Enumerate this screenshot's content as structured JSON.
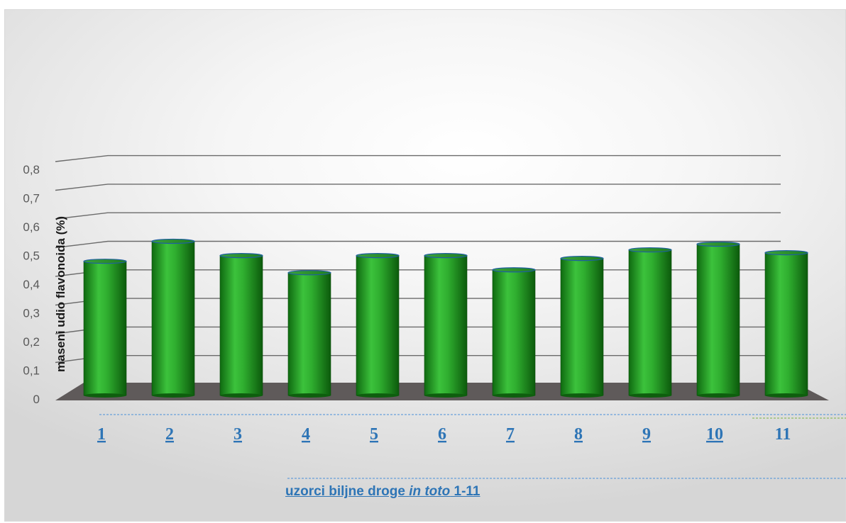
{
  "chart_data": {
    "type": "bar",
    "style": "3d-cylinder",
    "categories": [
      "1",
      "2",
      "3",
      "4",
      "5",
      "6",
      "7",
      "8",
      "9",
      "10",
      "11"
    ],
    "values": [
      0.44,
      0.51,
      0.46,
      0.4,
      0.46,
      0.46,
      0.41,
      0.45,
      0.48,
      0.5,
      0.47
    ],
    "y_ticks": [
      "0",
      "0,1",
      "0,2",
      "0,3",
      "0,4",
      "0,5",
      "0,6",
      "0,7",
      "0,8"
    ],
    "ylim": [
      0,
      0.8
    ],
    "ylabel": "maseni udio flavonoida (%)",
    "xlabel_parts": {
      "before": "uzorci biljne droge ",
      "italic": "in toto",
      "after": " 1-11"
    },
    "grid": true,
    "bar_color": "#2ea82e",
    "floor_color": "#5f5a5a",
    "tick_label_color": "#2e75b6",
    "last_tick_color": "#2e75b6"
  }
}
